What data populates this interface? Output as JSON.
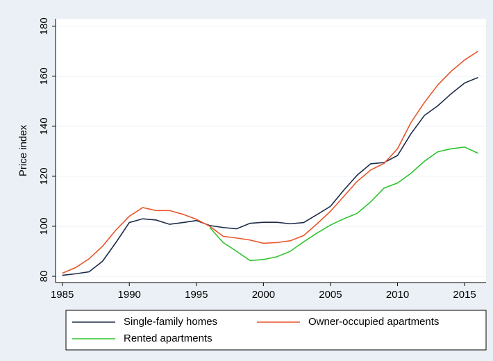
{
  "chart_data": {
    "type": "line",
    "y_label": "Price index",
    "x": [
      1985,
      1986,
      1987,
      1988,
      1989,
      1990,
      1991,
      1992,
      1993,
      1994,
      1995,
      1996,
      1997,
      1998,
      1999,
      2000,
      2001,
      2002,
      2003,
      2004,
      2005,
      2006,
      2007,
      2008,
      2009,
      2010,
      2011,
      2012,
      2013,
      2014,
      2015,
      2016
    ],
    "series": [
      {
        "name": "Single-family homes",
        "color": "#1c2a48",
        "values": [
          80.4,
          81,
          81.8,
          86,
          93.5,
          101.5,
          103,
          102.5,
          100.8,
          101.5,
          102.3,
          100.3,
          99.5,
          99,
          101.2,
          101.6,
          101.6,
          101,
          101.5,
          104.7,
          108,
          114.5,
          120.5,
          125,
          125.5,
          128.3,
          137,
          144.3,
          148.2,
          153,
          157.3,
          159.5
        ]
      },
      {
        "name": "Owner-occupied apartments",
        "color": "#e8562a",
        "values": [
          81.2,
          83.5,
          87,
          92,
          98.5,
          104,
          107.5,
          106.3,
          106.3,
          104.8,
          102.8,
          100,
          96,
          95.3,
          94.5,
          93.2,
          93.5,
          94.2,
          96.3,
          101,
          106,
          112,
          118,
          122.5,
          125.2,
          131,
          141.5,
          149.5,
          156.5,
          162,
          166.5,
          170
        ]
      },
      {
        "name": "Rented apartments",
        "color": "#2ec42e",
        "values": [
          null,
          null,
          null,
          null,
          null,
          null,
          null,
          null,
          null,
          null,
          null,
          99.5,
          93.5,
          90,
          86.3,
          86.7,
          87.8,
          90,
          93.8,
          97.3,
          100.5,
          103,
          105.2,
          109.8,
          115.3,
          117.3,
          121.2,
          126,
          129.8,
          131,
          131.7,
          129.2
        ]
      }
    ],
    "xlim": [
      1984.5,
      2016.6
    ],
    "xticks": [
      1985,
      1990,
      1995,
      2000,
      2005,
      2010,
      2015
    ],
    "ylim": [
      77.5,
      183
    ],
    "yticks": [
      80,
      100,
      120,
      140,
      160,
      180
    ],
    "grid": true
  }
}
